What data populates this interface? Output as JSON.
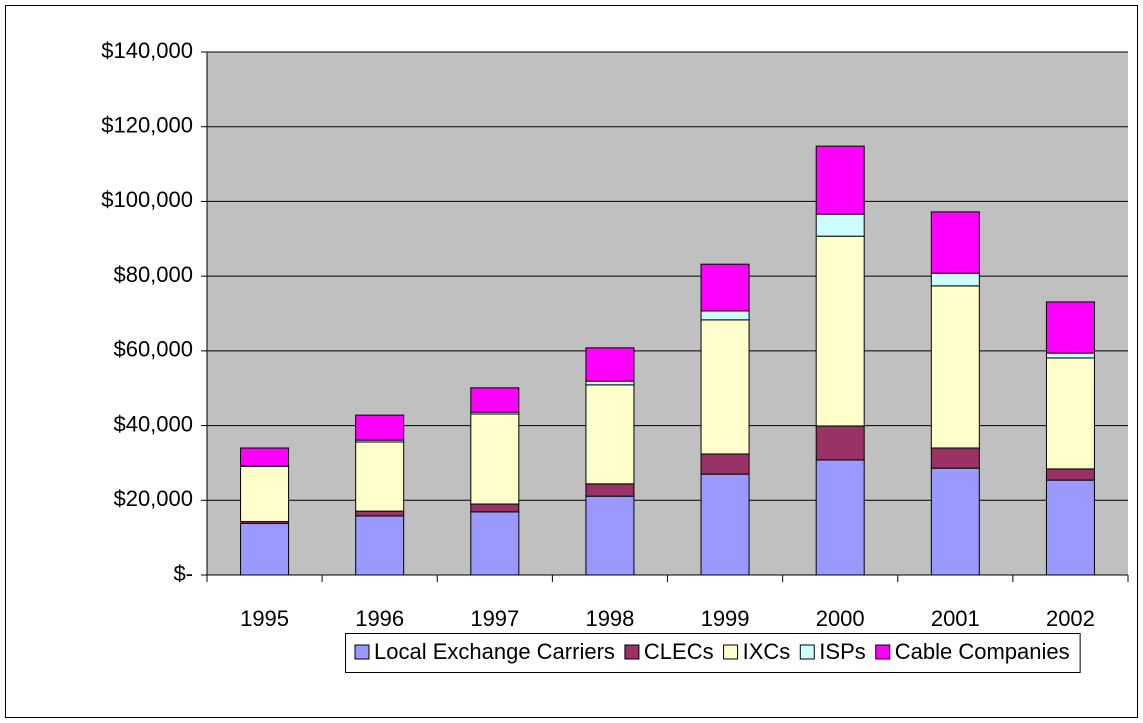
{
  "chart_data": {
    "type": "stacked_bar",
    "categories": [
      "1995",
      "1996",
      "1997",
      "1998",
      "1999",
      "2000",
      "2001",
      "2002"
    ],
    "series": [
      {
        "name": "Local Exchange Carriers",
        "color": "#9999ff",
        "values": [
          13800,
          15800,
          16900,
          21100,
          27000,
          30800,
          28600,
          25400
        ]
      },
      {
        "name": "CLECs",
        "color": "#993366",
        "values": [
          500,
          1300,
          2100,
          3300,
          5400,
          9100,
          5400,
          3000
        ]
      },
      {
        "name": "IXCs",
        "color": "#ffffcc",
        "values": [
          14800,
          18500,
          24100,
          26500,
          35900,
          50800,
          43400,
          29700
        ]
      },
      {
        "name": "ISPs",
        "color": "#ccffff",
        "values": [
          200,
          500,
          500,
          1000,
          2400,
          5900,
          3400,
          1300
        ]
      },
      {
        "name": "Cable Companies",
        "color": "#ff00ff",
        "values": [
          4700,
          6700,
          6500,
          8900,
          12500,
          18200,
          16400,
          13700
        ]
      }
    ],
    "ylim": [
      0,
      140000
    ],
    "yticks": [
      {
        "value": 0,
        "label": "$-"
      },
      {
        "value": 20000,
        "label": "$20,000"
      },
      {
        "value": 40000,
        "label": "$40,000"
      },
      {
        "value": 60000,
        "label": "$60,000"
      },
      {
        "value": 80000,
        "label": "$80,000"
      },
      {
        "value": 100000,
        "label": "$100,000"
      },
      {
        "value": 120000,
        "label": "$120,000"
      },
      {
        "value": 140000,
        "label": "$140,000"
      }
    ],
    "grid": true,
    "plot_background": "#c0c0c0",
    "legend": "bottom"
  }
}
